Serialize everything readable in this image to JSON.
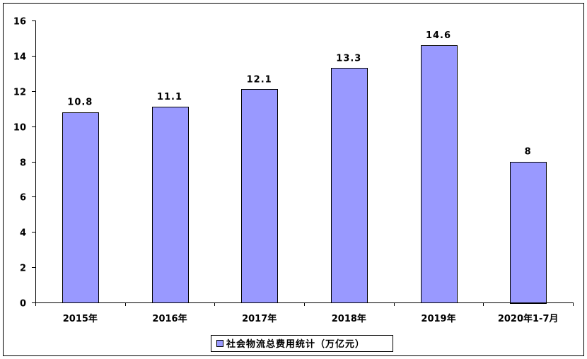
{
  "chart_data": {
    "type": "bar",
    "categories": [
      "2015年",
      "2016年",
      "2017年",
      "2018年",
      "2019年",
      "2020年1-7月"
    ],
    "series": [
      {
        "name": "社会物流总费用统计（万亿元）",
        "values": [
          10.8,
          11.1,
          12.1,
          13.3,
          14.6,
          8
        ],
        "labels": [
          "10.8",
          "11.1",
          "12.1",
          "13.3",
          "14.6",
          "8"
        ]
      }
    ],
    "ylim": [
      0,
      16
    ],
    "yticks": [
      "0",
      "2",
      "4",
      "6",
      "8",
      "10",
      "12",
      "14",
      "16"
    ],
    "grid": false,
    "legend_position": "bottom",
    "colors": {
      "bar_fill": "#9999FF",
      "bar_stroke": "#000000",
      "axis": "#000000"
    }
  }
}
